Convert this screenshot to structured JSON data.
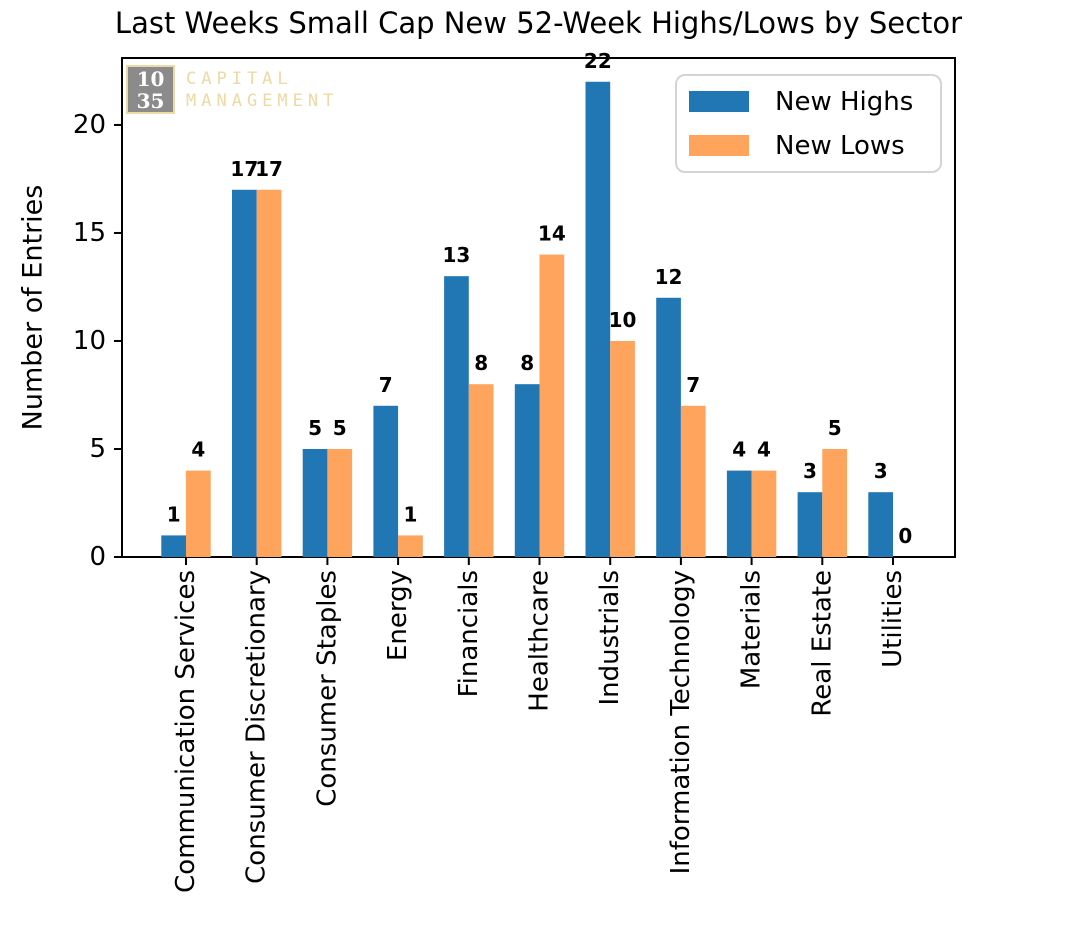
{
  "title": "Last Weeks Small Cap New 52-Week Highs/Lows by Sector",
  "logo": {
    "badge_line1": "10",
    "badge_line2": "35",
    "name_line1": "CAPITAL",
    "name_line2": "MANAGEMENT"
  },
  "colors": {
    "new_highs": "#2077b4",
    "new_lows": "#ffa45c",
    "axis": "#000000",
    "logo_gray": "#8b8b8b",
    "logo_tan": "#eed9a2",
    "legend_border": "#d4d4d4"
  },
  "chart_data": {
    "type": "bar",
    "title": "Last Weeks Small Cap New 52-Week Highs/Lows by Sector",
    "categories": [
      "Communication Services",
      "Consumer Discretionary",
      "Consumer Staples",
      "Energy",
      "Financials",
      "Healthcare",
      "Industrials",
      "Information Technology",
      "Materials",
      "Real Estate",
      "Utilities"
    ],
    "series": [
      {
        "name": "New Highs",
        "color": "#2077b4",
        "values": [
          1,
          17,
          5,
          7,
          13,
          8,
          22,
          12,
          4,
          3,
          3
        ]
      },
      {
        "name": "New Lows",
        "color": "#ffa45c",
        "values": [
          4,
          17,
          5,
          1,
          8,
          14,
          10,
          7,
          4,
          5,
          0
        ]
      }
    ],
    "xlabel": "",
    "ylabel": "Number of Entries",
    "yticks": [
      0,
      5,
      10,
      15,
      20
    ],
    "ylim": [
      0,
      23.1
    ],
    "bar_value_labels": true,
    "grid": false,
    "legend_position": "upper right"
  }
}
